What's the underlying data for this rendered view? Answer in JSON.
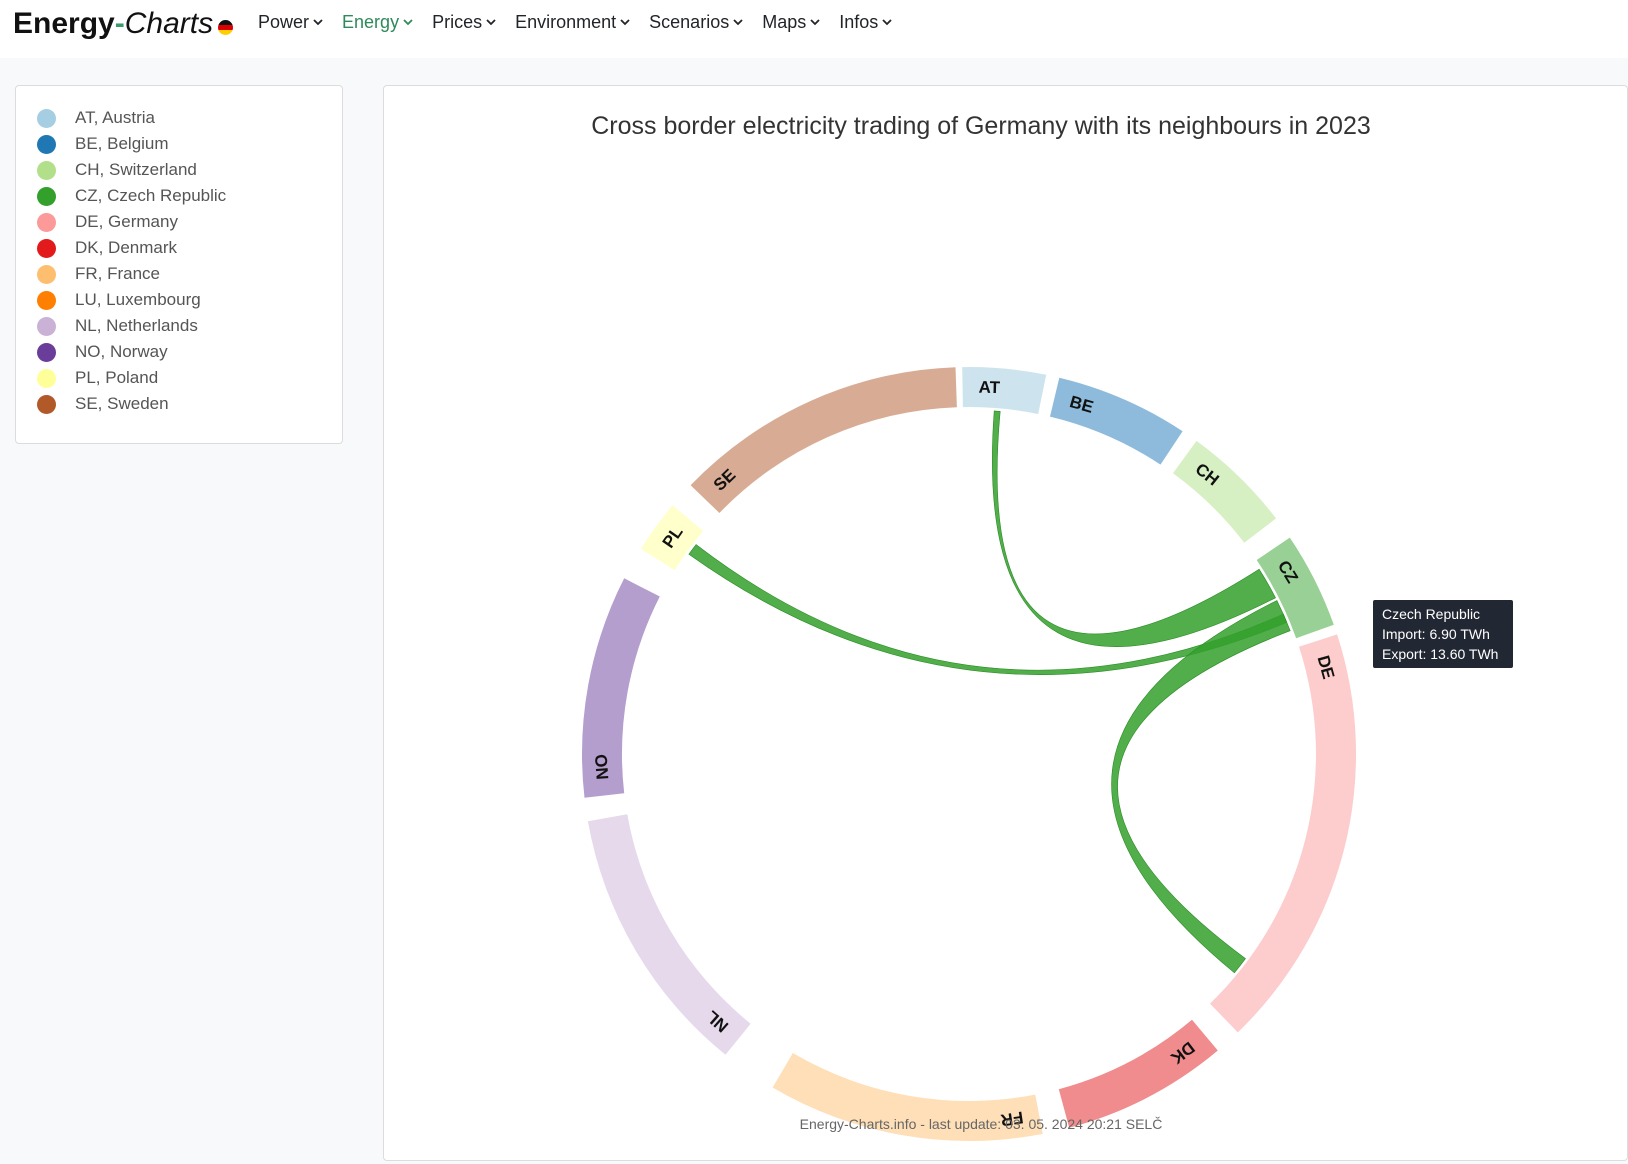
{
  "header": {
    "brand_part1": "Energy",
    "brand_dash": "-",
    "brand_part2": "Charts",
    "nav": [
      {
        "label": "Power",
        "active": false
      },
      {
        "label": "Energy",
        "active": true
      },
      {
        "label": "Prices",
        "active": false
      },
      {
        "label": "Environment",
        "active": false
      },
      {
        "label": "Scenarios",
        "active": false
      },
      {
        "label": "Maps",
        "active": false
      },
      {
        "label": "Infos",
        "active": false
      }
    ]
  },
  "legend": [
    {
      "label": "AT, Austria",
      "color": "#a6cee3"
    },
    {
      "label": "BE, Belgium",
      "color": "#1f78b4"
    },
    {
      "label": "CH, Switzerland",
      "color": "#b2df8a"
    },
    {
      "label": "CZ, Czech Republic",
      "color": "#33a02c"
    },
    {
      "label": "DE, Germany",
      "color": "#fb9a99"
    },
    {
      "label": "DK, Denmark",
      "color": "#e31a1c"
    },
    {
      "label": "FR, France",
      "color": "#fdbf6f"
    },
    {
      "label": "LU, Luxembourg",
      "color": "#ff7f00"
    },
    {
      "label": "NL, Netherlands",
      "color": "#cab2d6"
    },
    {
      "label": "NO, Norway",
      "color": "#6a3d9a"
    },
    {
      "label": "PL, Poland",
      "color": "#ffff99"
    },
    {
      "label": "SE, Sweden",
      "color": "#b15928"
    }
  ],
  "chart_title": "Cross border electricity trading of Germany with its neighbours in 2023",
  "footer": "Energy-Charts.info - last update: 03. 05. 2024 20:21 SELČ",
  "tooltip": {
    "title": "Czech Republic",
    "import": "Import: 6.90 TWh",
    "export": "Export: 13.60 TWh"
  },
  "chart_data": {
    "type": "chord",
    "highlighted": "CZ",
    "groups": [
      {
        "label": "AT",
        "color": "#cde4ef"
      },
      {
        "label": "BE",
        "color": "#8ebbdb"
      },
      {
        "label": "CH",
        "color": "#d6efc3"
      },
      {
        "label": "CZ",
        "color": "#99d095"
      },
      {
        "label": "DE",
        "color": "#fdcccc"
      },
      {
        "label": "DK",
        "color": "#f08c8d"
      },
      {
        "label": "FR",
        "color": "#fedfb7"
      },
      {
        "label": "NL",
        "color": "#e5d9eb"
      },
      {
        "label": "NO",
        "color": "#b49ecd"
      },
      {
        "label": "PL",
        "color": "#ffffcc"
      },
      {
        "label": "SE",
        "color": "#d8ac94"
      }
    ],
    "visible_ribbons": [
      {
        "source": "CZ",
        "target": "AT"
      },
      {
        "source": "CZ",
        "target": "PL"
      },
      {
        "source": "CZ",
        "target": "DE"
      }
    ],
    "ribbon_color": "#33a02c"
  }
}
